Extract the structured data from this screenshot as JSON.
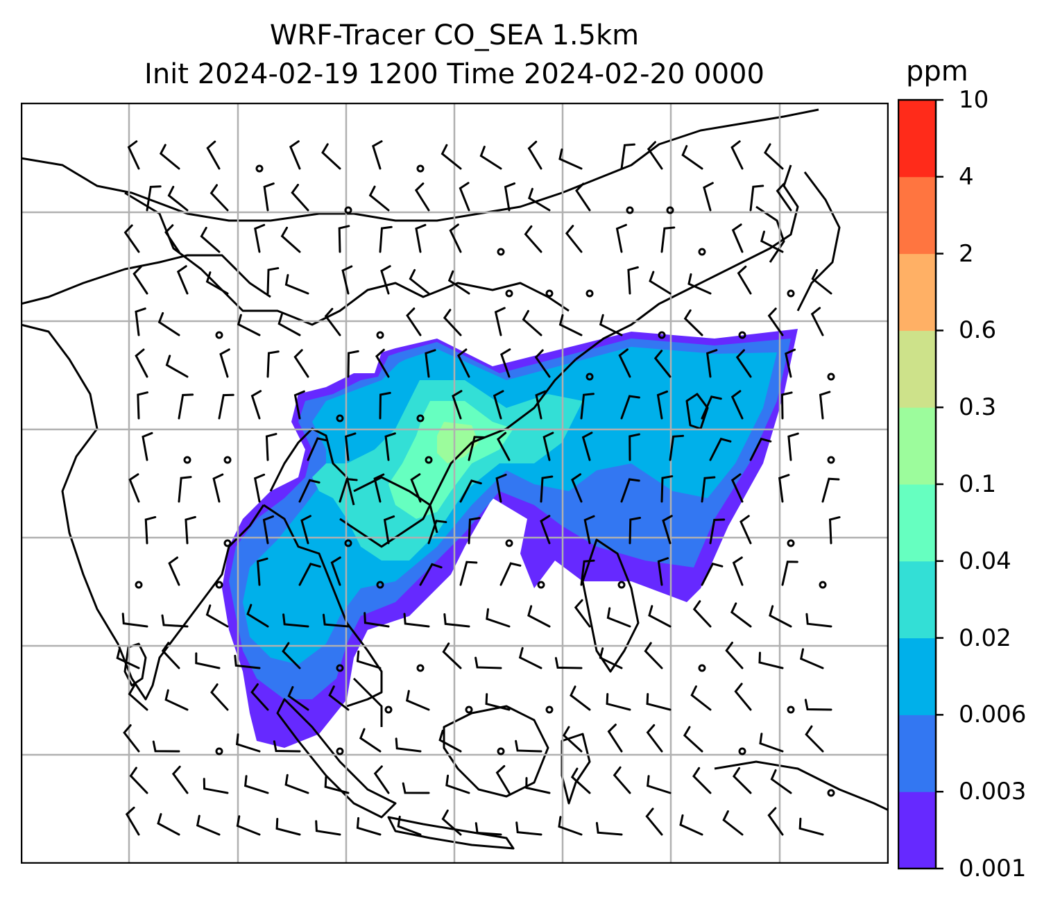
{
  "title": {
    "line1": "WRF-Tracer CO_SEA 1.5km",
    "line2": "Init 2024-02-19 1200 Time 2024-02-20 0000"
  },
  "colorbar": {
    "unit": "ppm",
    "levels": [
      "0.001",
      "0.003",
      "0.006",
      "0.02",
      "0.04",
      "0.1",
      "0.3",
      "0.6",
      "2",
      "4",
      "10"
    ],
    "colors": [
      "#6629ff",
      "#3377f2",
      "#00b0ea",
      "#33dfd6",
      "#66ffc0",
      "#9cfc9c",
      "#cde28a",
      "#ffb065",
      "#ff7540",
      "#ff2b1a"
    ]
  },
  "map": {
    "tracer": "CO_SEA",
    "level": "1.5km",
    "gridlines": true,
    "land_color": "#ffffff",
    "coastline_color": "#000000"
  }
}
